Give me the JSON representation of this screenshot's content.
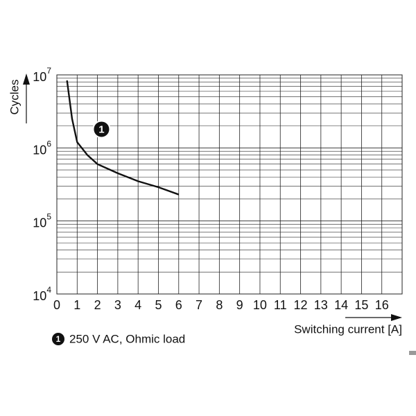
{
  "chart_data": {
    "type": "line",
    "x_label": "Switching current [A]",
    "y_label": "Cycles",
    "log_y": true,
    "grid": true,
    "minor_grid": true,
    "xlim": [
      0,
      17
    ],
    "ylim": [
      10000,
      10000000
    ],
    "xticks": [
      0,
      1,
      2,
      3,
      4,
      5,
      6,
      7,
      8,
      9,
      10,
      11,
      12,
      13,
      14,
      15,
      16
    ],
    "yticks": [
      {
        "value": 10000,
        "label": "10",
        "exponent": "4"
      },
      {
        "value": 100000,
        "label": "10",
        "exponent": "5"
      },
      {
        "value": 1000000,
        "label": "10",
        "exponent": "6"
      },
      {
        "value": 10000000,
        "label": "10",
        "exponent": "7"
      }
    ],
    "series": [
      {
        "name": "250 V AC, Ohmic load",
        "marker_label": "1",
        "color": "#111111",
        "x": [
          0.5,
          0.75,
          1,
          1.5,
          2,
          3,
          4,
          5,
          6
        ],
        "values": [
          8400000,
          2500000,
          1200000,
          800000,
          600000,
          450000,
          350000,
          290000,
          230000
        ]
      }
    ],
    "annotation": {
      "text": "1",
      "x": 2.2,
      "y": 1800000
    }
  }
}
